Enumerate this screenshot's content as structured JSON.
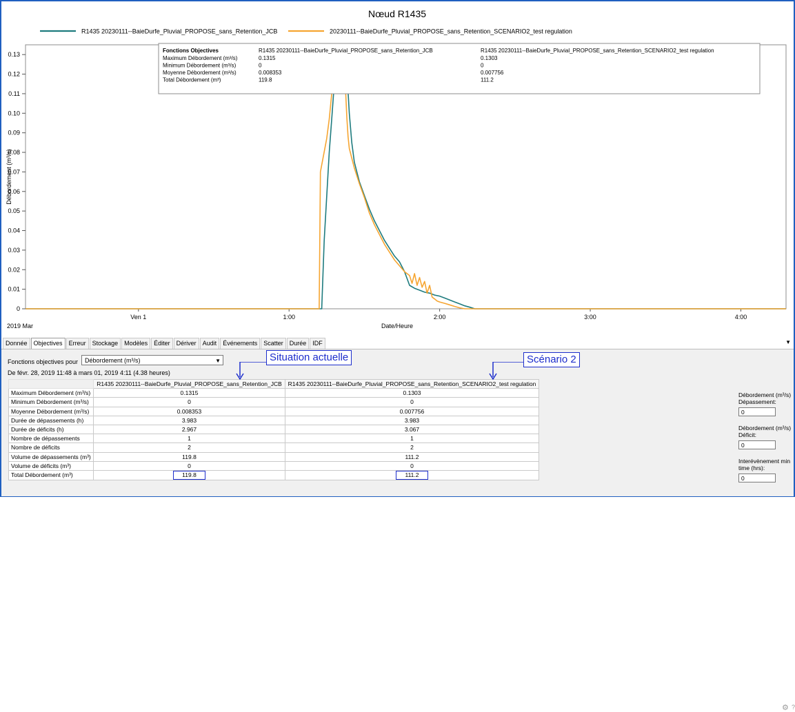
{
  "chart_data": {
    "type": "line",
    "title": "Nœud R1435",
    "xlabel": "Date/Heure",
    "ylabel": "Débordement (m³/s)",
    "x_unit": "minutes after 2019-03-01 00:00",
    "x_range": [
      -45,
      258
    ],
    "ylim": [
      0,
      0.135
    ],
    "yticks": [
      0,
      0.01,
      0.02,
      0.03,
      0.04,
      0.05,
      0.06,
      0.07,
      0.08,
      0.09,
      0.1,
      0.11,
      0.12,
      0.13
    ],
    "ytick_labels": [
      "0",
      "0.01",
      "0.02",
      "0.03",
      "0.04",
      "0.05",
      "0.06",
      "0.07",
      "0.08",
      "0.09",
      "0.10",
      "0.11",
      "0.12",
      "0.13"
    ],
    "xticks": [
      0,
      60,
      120,
      180,
      240
    ],
    "xtick_labels": [
      "Ven 1",
      "1:00",
      "2:00",
      "3:00",
      "4:00"
    ],
    "x_sub_label": "2019 Mar",
    "grid": false,
    "legend_position": "top",
    "series": [
      {
        "name": "R1435 20230111--BaieDurfe_Pluvial_PROPOSE_sans_Retention_JCB",
        "color": "#1e7b7e",
        "x": [
          -45,
          73,
          74,
          76,
          77,
          78,
          79,
          80,
          81,
          82,
          83,
          84,
          85,
          86,
          88,
          90,
          92,
          94,
          96,
          98,
          100,
          102,
          104,
          106,
          108,
          110,
          112,
          114,
          116,
          118,
          120,
          122,
          124,
          126,
          128,
          130,
          132,
          134,
          258
        ],
        "values": [
          0,
          0,
          0.035,
          0.08,
          0.097,
          0.115,
          0.124,
          0.1315,
          0.131,
          0.13,
          0.122,
          0.1,
          0.085,
          0.075,
          0.065,
          0.058,
          0.051,
          0.045,
          0.04,
          0.035,
          0.031,
          0.027,
          0.024,
          0.019,
          0.012,
          0.0105,
          0.0095,
          0.0085,
          0.008,
          0.007,
          0.0065,
          0.0055,
          0.0045,
          0.0035,
          0.0025,
          0.0015,
          0.0008,
          0,
          0
        ]
      },
      {
        "name": "20230111--BaieDurfe_Pluvial_PROPOSE_sans_Retention_SCENARIO2_test regulation",
        "color": "#f6a531",
        "x": [
          -45,
          72,
          72.5,
          75,
          76,
          77,
          78,
          79,
          80,
          81,
          82,
          83,
          83.5,
          84,
          85,
          86,
          88,
          90,
          92,
          94,
          96,
          98,
          100,
          102,
          104,
          106,
          108,
          109,
          110,
          111,
          112,
          113,
          114,
          115,
          116,
          117,
          118,
          119,
          120,
          122,
          124,
          126,
          128,
          130,
          258
        ],
        "values": [
          0,
          0,
          0.07,
          0.087,
          0.097,
          0.11,
          0.12,
          0.129,
          0.1303,
          0.129,
          0.126,
          0.098,
          0.088,
          0.082,
          0.077,
          0.072,
          0.064,
          0.057,
          0.049,
          0.043,
          0.038,
          0.033,
          0.029,
          0.025,
          0.022,
          0.019,
          0.017,
          0.013,
          0.018,
          0.012,
          0.016,
          0.011,
          0.014,
          0.008,
          0.012,
          0.006,
          0.005,
          0.004,
          0.0035,
          0.0028,
          0.002,
          0.0012,
          0.0005,
          0,
          0
        ]
      }
    ]
  },
  "stats_box": {
    "header": "Fonctions Objectives",
    "col1": "R1435 20230111--BaieDurfe_Pluvial_PROPOSE_sans_Retention_JCB",
    "col2": "R1435 20230111--BaieDurfe_Pluvial_PROPOSE_sans_Retention_SCENARIO2_test regulation",
    "rows": [
      {
        "label": "Maximum Débordement (m³/s)",
        "v1": "0.1315",
        "v2": "0.1303"
      },
      {
        "label": "Minimum Débordement (m³/s)",
        "v1": "0",
        "v2": "0"
      },
      {
        "label": "Moyenne Débordement (m³/s)",
        "v1": "0.008353",
        "v2": "0.007756"
      },
      {
        "label": "Total Débordement (m³)",
        "v1": "119.8",
        "v2": "111.2"
      }
    ]
  },
  "tabs": [
    "Donnée",
    "Objectives",
    "Erreur",
    "Stockage",
    "Modèles",
    "Éditer",
    "Dériver",
    "Audit",
    "Événements",
    "Scatter",
    "Durée",
    "IDF"
  ],
  "active_tab": "Objectives",
  "panel": {
    "fo_label": "Fonctions objectives pour",
    "fo_select": "Débordement (m³/s)",
    "range_text": "De févr. 28, 2019 11:48  à mars 01, 2019 4:11  (4.38 heures)",
    "columns": [
      "R1435 20230111--BaieDurfe_Pluvial_PROPOSE_sans_Retention_JCB",
      "R1435 20230111--BaieDurfe_Pluvial_PROPOSE_sans_Retention_SCENARIO2_test regulation"
    ],
    "rows": [
      {
        "label": "Maximum Débordement (m³/s)",
        "v1": "0.1315",
        "v2": "0.1303"
      },
      {
        "label": "Minimum Débordement (m³/s)",
        "v1": "0",
        "v2": "0"
      },
      {
        "label": "Moyenne Débordement (m³/s)",
        "v1": "0.008353",
        "v2": "0.007756"
      },
      {
        "label": "Durée de dépassements (h)",
        "v1": "3.983",
        "v2": "3.983"
      },
      {
        "label": "Durée de déficits (h)",
        "v1": "2.967",
        "v2": "3.067"
      },
      {
        "label": "Nombre de dépassements",
        "v1": "1",
        "v2": "1"
      },
      {
        "label": "Nombre de déficits",
        "v1": "2",
        "v2": "2"
      },
      {
        "label": "Volume de dépassements (m³)",
        "v1": "119.8",
        "v2": "111.2"
      },
      {
        "label": "Volume de déficits (m³)",
        "v1": "0",
        "v2": "0"
      },
      {
        "label": "Total Débordement (m³)",
        "v1": "119.8",
        "v2": "111.2"
      }
    ]
  },
  "callouts": {
    "left": "Situation actuelle",
    "right": "Scénario 2",
    "color": "#1c2dcc"
  },
  "right_panel": {
    "exceed_label": "Débordement (m³/s) Dépassement:",
    "exceed_value": "0",
    "deficit_label": "Débordement (m³/s) Déficit:",
    "deficit_value": "0",
    "inter_label": "Interévènement min time (hrs):",
    "inter_value": "0"
  }
}
